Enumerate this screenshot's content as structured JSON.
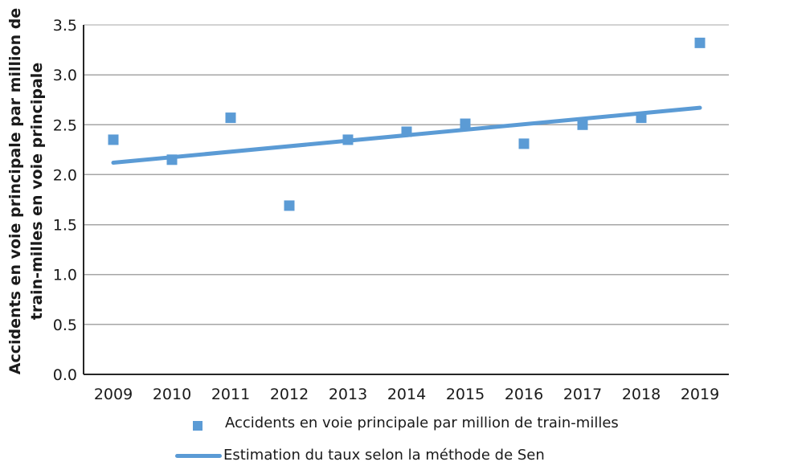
{
  "chart_data": {
    "type": "scatter",
    "categories": [
      "2009",
      "2010",
      "2011",
      "2012",
      "2013",
      "2014",
      "2015",
      "2016",
      "2017",
      "2018",
      "2019"
    ],
    "series": [
      {
        "name": "Accidents en voie principale par million de train-milles",
        "type": "scatter",
        "marker": "square",
        "values": [
          2.35,
          2.15,
          2.57,
          1.69,
          2.35,
          2.43,
          2.51,
          2.31,
          2.5,
          2.57,
          3.32
        ]
      },
      {
        "name": "Estimation du taux selon la méthode de Sen",
        "type": "line",
        "values": [
          2.12,
          2.18,
          2.23,
          2.29,
          2.34,
          2.4,
          2.45,
          2.51,
          2.56,
          2.62,
          2.67
        ]
      }
    ],
    "xlabel": "",
    "ylabel": "Accidents en voie principale par million de train-milles en voie principale",
    "ylabel_lines": [
      "Accidents en voie principale par million de",
      "train-milles en voie principale"
    ],
    "ylim": [
      0.0,
      3.5
    ],
    "ytick_step": 0.5,
    "ytick_labels": [
      "0.0",
      "0.5",
      "1.0",
      "1.5",
      "2.0",
      "2.5",
      "3.0",
      "3.5"
    ],
    "grid": "horizontal",
    "legend_position": "bottom",
    "colors": {
      "accent": "#5B9BD5",
      "gridline": "#A6A6A6",
      "axis": "#262626",
      "text": "#1A1A1A"
    }
  }
}
